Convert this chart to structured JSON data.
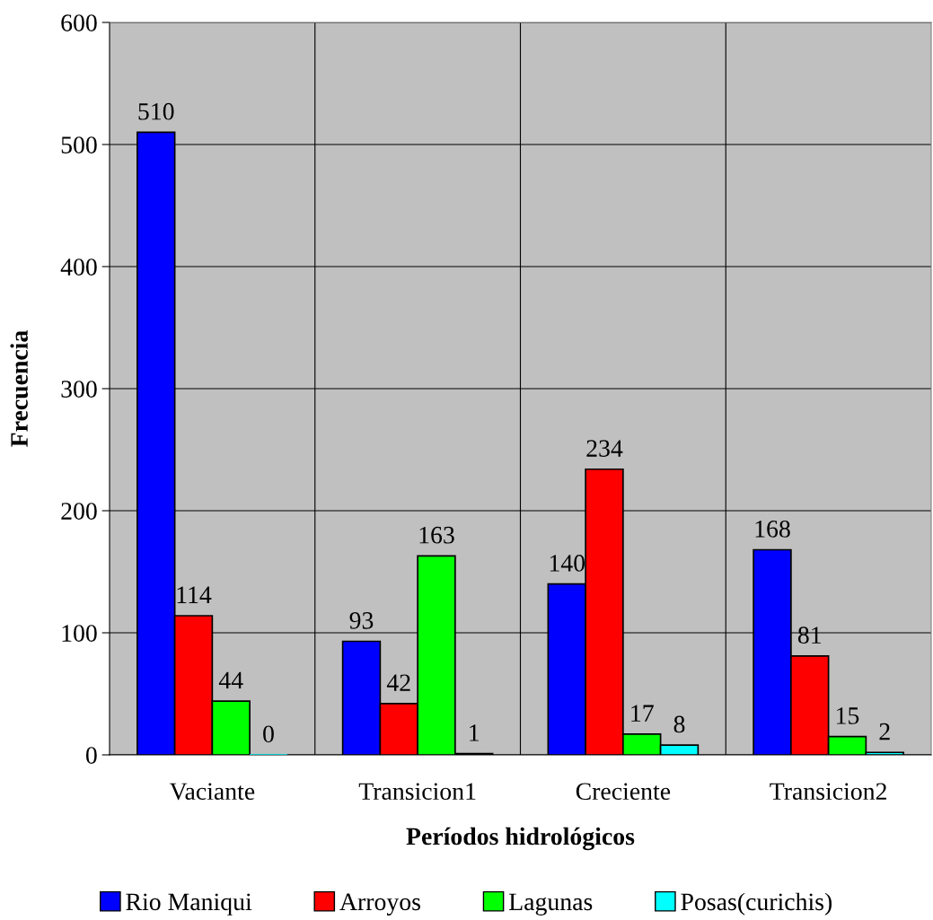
{
  "chart_data": {
    "type": "bar",
    "xlabel": "Períodos hidrológicos",
    "ylabel": "Frecuencia",
    "categories": [
      "Vaciante",
      "Transicion1",
      "Creciente",
      "Transicion2"
    ],
    "series": [
      {
        "name": "Rio Maniqui",
        "color": "#0000ff",
        "values": [
          510,
          93,
          140,
          168
        ]
      },
      {
        "name": "Arroyos",
        "color": "#ff0000",
        "values": [
          114,
          42,
          234,
          81
        ]
      },
      {
        "name": "Lagunas",
        "color": "#00ff00",
        "values": [
          44,
          163,
          17,
          15
        ]
      },
      {
        "name": "Posas(curichis)",
        "color": "#00ffff",
        "values": [
          0,
          1,
          8,
          2
        ]
      }
    ],
    "ylim": [
      0,
      600
    ],
    "yticks": [
      0,
      100,
      200,
      300,
      400,
      500,
      600
    ],
    "grid": true,
    "legend": "bottom",
    "data_labels": true
  }
}
